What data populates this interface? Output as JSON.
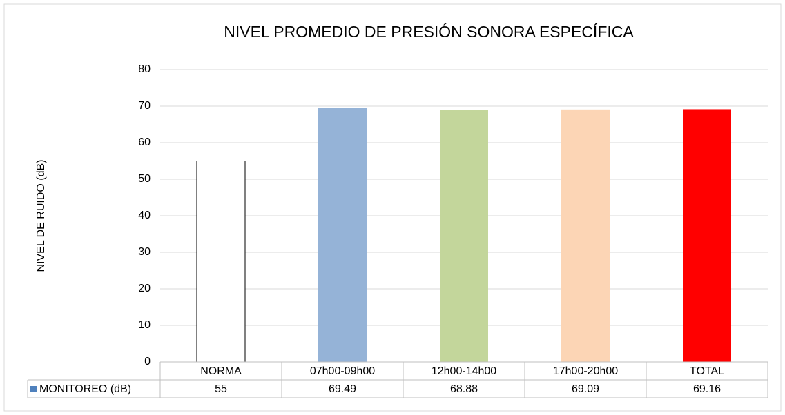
{
  "chart_data": {
    "type": "bar",
    "title": "NIVEL PROMEDIO DE PRESIÓN SONORA ESPECÍFICA",
    "y_label": "NIVEL DE RUIDO (dB)",
    "categories": [
      "NORMA",
      "07h00-09h00",
      "12h00-14h00",
      "17h00-20h00",
      "TOTAL"
    ],
    "series": [
      {
        "name": "MONITOREO (dB)",
        "color": "#4f81bd",
        "values": [
          55,
          69.49,
          68.88,
          69.09,
          69.16
        ]
      }
    ],
    "bar_colors": [
      "#ffffff",
      "#95b3d7",
      "#c3d69b",
      "#fcd5b5",
      "#ff0000"
    ],
    "ylim": [
      0,
      80
    ],
    "yticks": [
      0,
      10,
      20,
      30,
      40,
      50,
      60,
      70,
      80
    ],
    "grid": true,
    "data_table": true
  }
}
